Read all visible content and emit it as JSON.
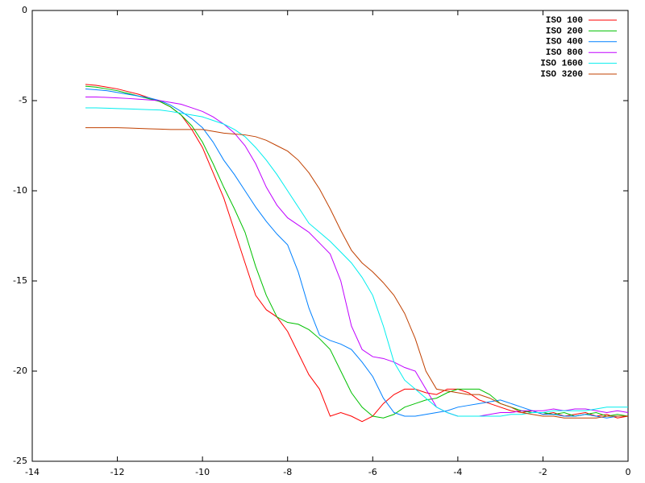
{
  "chart_data": {
    "type": "line",
    "x": [
      -12.75,
      -12.5,
      -12.25,
      -12,
      -11.75,
      -11.5,
      -11.25,
      -11,
      -10.75,
      -10.5,
      -10.25,
      -10,
      -9.75,
      -9.5,
      -9.25,
      -9,
      -8.75,
      -8.5,
      -8.25,
      -8,
      -7.75,
      -7.5,
      -7.25,
      -7,
      -6.75,
      -6.5,
      -6.25,
      -6,
      -5.75,
      -5.5,
      -5.25,
      -5,
      -4.75,
      -4.5,
      -4.25,
      -4,
      -3.75,
      -3.5,
      -3.25,
      -3,
      -2.75,
      -2.5,
      -2.25,
      -2,
      -1.75,
      -1.5,
      -1.25,
      -1,
      -0.75,
      -0.5,
      -0.25,
      0
    ],
    "series": [
      {
        "name": "ISO 100",
        "color": "#ff0000",
        "values": [
          -4.1,
          -4.15,
          -4.25,
          -4.35,
          -4.5,
          -4.65,
          -4.85,
          -5.05,
          -5.35,
          -5.8,
          -6.6,
          -7.6,
          -9.0,
          -10.4,
          -12.2,
          -14.0,
          -15.8,
          -16.6,
          -17.0,
          -17.8,
          -19.0,
          -20.2,
          -21.0,
          -22.5,
          -22.3,
          -22.5,
          -22.8,
          -22.5,
          -21.8,
          -21.3,
          -21.0,
          -21.0,
          -21.2,
          -21.3,
          -21.0,
          -21.0,
          -21.2,
          -21.6,
          -21.8,
          -22.0,
          -22.2,
          -22.3,
          -22.2,
          -22.4,
          -22.3,
          -22.5,
          -22.4,
          -22.3,
          -22.5,
          -22.4,
          -22.6,
          -22.5
        ]
      },
      {
        "name": "ISO 200",
        "color": "#00c000",
        "values": [
          -4.2,
          -4.25,
          -4.35,
          -4.45,
          -4.6,
          -4.75,
          -4.9,
          -5.05,
          -5.35,
          -5.8,
          -6.4,
          -7.3,
          -8.5,
          -9.8,
          -11.0,
          -12.3,
          -14.2,
          -15.8,
          -17.0,
          -17.3,
          -17.4,
          -17.7,
          -18.2,
          -18.8,
          -20.0,
          -21.2,
          -22.0,
          -22.5,
          -22.6,
          -22.4,
          -22.0,
          -21.8,
          -21.6,
          -21.5,
          -21.2,
          -21.0,
          -21.0,
          -21.0,
          -21.3,
          -21.8,
          -22.0,
          -22.2,
          -22.3,
          -22.3,
          -22.4,
          -22.3,
          -22.5,
          -22.4,
          -22.3,
          -22.5,
          -22.4,
          -22.5
        ]
      },
      {
        "name": "ISO 400",
        "color": "#0080ff",
        "values": [
          -4.35,
          -4.4,
          -4.45,
          -4.55,
          -4.65,
          -4.75,
          -4.85,
          -5.0,
          -5.25,
          -5.6,
          -6.0,
          -6.5,
          -7.3,
          -8.3,
          -9.1,
          -10.0,
          -10.9,
          -11.7,
          -12.4,
          -13.0,
          -14.5,
          -16.5,
          -18.0,
          -18.3,
          -18.5,
          -18.8,
          -19.5,
          -20.3,
          -21.5,
          -22.3,
          -22.5,
          -22.5,
          -22.4,
          -22.3,
          -22.2,
          -22.0,
          -21.9,
          -21.8,
          -21.7,
          -21.6,
          -21.8,
          -22.0,
          -22.2,
          -22.4,
          -22.4,
          -22.5,
          -22.5,
          -22.4,
          -22.5,
          -22.6,
          -22.5,
          -22.5
        ]
      },
      {
        "name": "ISO 800",
        "color": "#c000ff",
        "values": [
          -4.8,
          -4.8,
          -4.82,
          -4.85,
          -4.88,
          -4.92,
          -4.96,
          -5.0,
          -5.1,
          -5.2,
          -5.4,
          -5.6,
          -5.9,
          -6.3,
          -6.8,
          -7.5,
          -8.5,
          -9.8,
          -10.8,
          -11.5,
          -11.9,
          -12.3,
          -12.9,
          -13.5,
          -15.0,
          -17.5,
          -18.8,
          -19.2,
          -19.3,
          -19.5,
          -19.8,
          -20.0,
          -21.0,
          -22.0,
          -22.3,
          -22.5,
          -22.5,
          -22.5,
          -22.4,
          -22.3,
          -22.3,
          -22.2,
          -22.2,
          -22.2,
          -22.1,
          -22.2,
          -22.1,
          -22.1,
          -22.2,
          -22.3,
          -22.2,
          -22.3
        ]
      },
      {
        "name": "ISO 1600",
        "color": "#00eeee",
        "values": [
          -5.4,
          -5.4,
          -5.42,
          -5.44,
          -5.46,
          -5.48,
          -5.5,
          -5.52,
          -5.6,
          -5.7,
          -5.8,
          -5.9,
          -6.1,
          -6.3,
          -6.6,
          -7.0,
          -7.6,
          -8.3,
          -9.1,
          -10.0,
          -10.9,
          -11.8,
          -12.3,
          -12.8,
          -13.4,
          -14.0,
          -14.8,
          -15.8,
          -17.5,
          -19.5,
          -20.5,
          -21.0,
          -21.5,
          -22.0,
          -22.3,
          -22.5,
          -22.5,
          -22.5,
          -22.5,
          -22.5,
          -22.4,
          -22.4,
          -22.3,
          -22.3,
          -22.2,
          -22.2,
          -22.2,
          -22.2,
          -22.1,
          -22.0,
          -22.0,
          -22.0
        ]
      },
      {
        "name": "ISO 3200",
        "color": "#c04000",
        "values": [
          -6.5,
          -6.5,
          -6.5,
          -6.5,
          -6.52,
          -6.54,
          -6.56,
          -6.58,
          -6.6,
          -6.6,
          -6.6,
          -6.6,
          -6.7,
          -6.8,
          -6.85,
          -6.9,
          -7.0,
          -7.2,
          -7.5,
          -7.8,
          -8.3,
          -9.0,
          -9.9,
          -11.0,
          -12.2,
          -13.3,
          -14.0,
          -14.5,
          -15.1,
          -15.8,
          -16.8,
          -18.2,
          -20.0,
          -21.0,
          -21.1,
          -21.2,
          -21.3,
          -21.3,
          -21.5,
          -21.8,
          -22.0,
          -22.3,
          -22.4,
          -22.5,
          -22.5,
          -22.6,
          -22.6,
          -22.6,
          -22.6,
          -22.5,
          -22.5,
          -22.5
        ]
      }
    ],
    "xlim": [
      -14,
      0
    ],
    "xticks": [
      -14,
      -12,
      -10,
      -8,
      -6,
      -4,
      -2,
      0
    ],
    "ylim": [
      -25,
      0
    ],
    "yticks": [
      -25,
      -20,
      -15,
      -10,
      -5,
      0
    ],
    "legend": "top-right"
  }
}
